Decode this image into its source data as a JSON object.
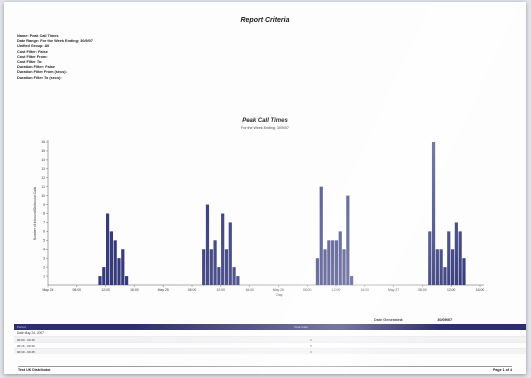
{
  "report": {
    "title": "Report Criteria",
    "criteria": [
      "Name: Peak Call Times",
      "Date Range: For the Week Ending: 30/9/07",
      "Unified Group: All",
      "Cost Filter: False",
      "Cost Filter From:",
      "Cost Filter To:",
      "Duration Filter: False",
      "Duration Filter From (secs):",
      "Duration Filter To (secs):"
    ]
  },
  "chart_data": {
    "type": "bar",
    "title": "Peak Call Times",
    "subtitle": "For the Week Ending: 30/9/07",
    "ylabel": "Number of Inbound/Outbound Calls",
    "xlabel": "Day",
    "ylim": [
      0,
      16
    ],
    "yticks": [
      1,
      2,
      3,
      4,
      5,
      6,
      7,
      8,
      9,
      10,
      11,
      12,
      13,
      14,
      15,
      16
    ],
    "xticks": [
      "May 24",
      "08:00",
      "12:00",
      "16:00",
      "May 25",
      "08:00",
      "12:00",
      "16:00",
      "May 26",
      "08:00",
      "12:00",
      "16:00",
      "May 27",
      "08:00",
      "12:00",
      "16:00"
    ],
    "color": "#363b7c",
    "clusters": [
      {
        "start_tick": 1.75,
        "values": [
          1,
          2,
          8,
          6,
          5,
          3,
          4,
          1
        ]
      },
      {
        "start_tick": 5.35,
        "values": [
          4,
          9,
          4,
          5,
          2,
          8,
          4,
          7,
          2,
          1
        ]
      },
      {
        "start_tick": 9.3,
        "values": [
          3,
          11,
          4,
          5,
          5,
          5,
          6,
          4,
          10,
          1
        ]
      },
      {
        "start_tick": 13.2,
        "values": [
          6,
          16,
          4,
          4,
          2,
          6,
          4,
          7,
          6,
          3
        ]
      }
    ]
  },
  "table": {
    "header_left": "Period",
    "header_right": "Total Calls",
    "group_label": "Date     May 24, 2007",
    "rows": [
      {
        "time": "00:00 - 00:15",
        "value": "0"
      },
      {
        "time": "00:15 - 00:30",
        "value": "0"
      },
      {
        "time": "00:30 - 00:45",
        "value": "0"
      }
    ]
  },
  "generated": {
    "label": "Date Generated:",
    "value": "30/09/07"
  },
  "footer": {
    "left": "Test UK Distributor",
    "right": "Page 1 of 4"
  }
}
